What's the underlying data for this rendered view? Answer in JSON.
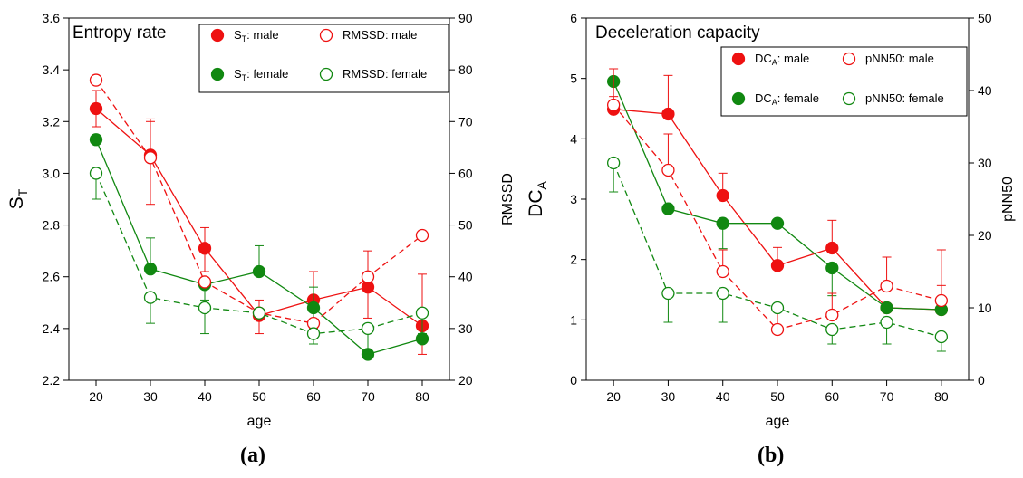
{
  "colors": {
    "male": "#ee1111",
    "female": "#118811",
    "axis": "#000000"
  },
  "chart_data": [
    {
      "type": "line",
      "title": "Entropy rate",
      "panel_label_pre": "(",
      "panel_label_letter": "a",
      "panel_label_post": ")",
      "xlabel": "age",
      "ylabel_main": "S",
      "ylabel_sub": "T",
      "y2label": "RMSSD",
      "x": [
        20,
        30,
        40,
        50,
        60,
        70,
        80
      ],
      "xlim": [
        15,
        85
      ],
      "ylim": [
        2.2,
        3.6
      ],
      "y2lim": [
        20,
        90
      ],
      "yticks": [
        "2.2",
        "2.4",
        "2.6",
        "2.8",
        "3.0",
        "3.2",
        "3.4",
        "3.6"
      ],
      "y2ticks": [
        "20",
        "30",
        "40",
        "50",
        "60",
        "70",
        "80",
        "90"
      ],
      "xticks": [
        "20",
        "30",
        "40",
        "50",
        "60",
        "70",
        "80"
      ],
      "series": [
        {
          "legend_pre": "S",
          "legend_sub": "T",
          "legend_post": ": male",
          "axis": "left",
          "color": "#ee1111",
          "marker": "filled",
          "dash": false,
          "values": [
            3.25,
            3.07,
            2.71,
            2.45,
            2.51,
            2.56,
            2.41
          ],
          "err_hi": [
            3.32,
            3.21,
            2.79,
            2.51,
            2.62,
            2.7,
            2.61
          ],
          "err_lo": [
            3.18,
            2.88,
            2.62,
            2.38,
            2.4,
            2.44,
            2.3
          ]
        },
        {
          "legend_pre": "S",
          "legend_sub": "T",
          "legend_post": ": female",
          "axis": "left",
          "color": "#118811",
          "marker": "filled",
          "dash": false,
          "values": [
            3.13,
            2.63,
            2.57,
            2.62,
            2.48,
            2.3,
            2.36
          ],
          "err_hi": [
            3.13,
            2.75,
            2.57,
            2.72,
            2.56,
            2.3,
            2.36
          ],
          "err_lo": [
            3.13,
            2.63,
            2.51,
            2.62,
            2.36,
            2.3,
            2.36
          ]
        },
        {
          "legend_pre": "RMSSD: male",
          "legend_sub": "",
          "legend_post": "",
          "axis": "right",
          "color": "#ee1111",
          "marker": "open",
          "dash": true,
          "values": [
            78,
            63,
            39,
            33,
            31,
            40,
            48
          ],
          "err_hi": [
            78,
            70,
            39,
            33,
            31,
            40,
            48
          ],
          "err_lo": [
            78,
            63,
            39,
            33,
            31,
            40,
            48
          ]
        },
        {
          "legend_pre": "RMSSD: female",
          "legend_sub": "",
          "legend_post": "",
          "axis": "right",
          "color": "#118811",
          "marker": "open",
          "dash": true,
          "values": [
            60,
            36,
            34,
            33,
            29,
            30,
            33
          ],
          "err_hi": [
            60,
            36,
            34,
            33,
            29,
            30,
            33
          ],
          "err_lo": [
            55,
            31,
            29,
            33,
            27,
            25,
            29
          ]
        }
      ]
    },
    {
      "type": "line",
      "title": "Deceleration capacity",
      "panel_label_pre": "(",
      "panel_label_letter": "b",
      "panel_label_post": ")",
      "xlabel": "age",
      "ylabel_main": "DC",
      "ylabel_sub": "A",
      "y2label": "pNN50",
      "x": [
        20,
        30,
        40,
        50,
        60,
        70,
        80
      ],
      "xlim": [
        15,
        85
      ],
      "ylim": [
        0,
        6
      ],
      "y2lim": [
        0,
        50
      ],
      "yticks": [
        "0",
        "1",
        "2",
        "3",
        "4",
        "5",
        "6"
      ],
      "y2ticks": [
        "0",
        "10",
        "20",
        "30",
        "40",
        "50"
      ],
      "xticks": [
        "20",
        "30",
        "40",
        "50",
        "60",
        "70",
        "80"
      ],
      "series": [
        {
          "legend_pre": "DC",
          "legend_sub": "A",
          "legend_post": ": male",
          "axis": "left",
          "color": "#ee1111",
          "marker": "filled",
          "dash": false,
          "values": [
            4.49,
            4.41,
            3.06,
            1.9,
            2.19,
            1.2,
            1.17
          ],
          "err_hi": [
            4.7,
            5.05,
            3.43,
            2.2,
            2.65,
            1.2,
            1.57
          ],
          "err_lo": [
            4.49,
            4.41,
            3.06,
            1.9,
            2.19,
            1.2,
            1.17
          ]
        },
        {
          "legend_pre": "DC",
          "legend_sub": "A",
          "legend_post": ": female",
          "axis": "left",
          "color": "#118811",
          "marker": "filled",
          "dash": false,
          "values": [
            4.95,
            2.84,
            2.6,
            2.6,
            1.86,
            1.2,
            1.17
          ],
          "err_hi": [
            4.95,
            2.84,
            2.6,
            2.6,
            1.86,
            1.2,
            1.17
          ],
          "err_lo": [
            4.95,
            2.84,
            2.18,
            2.6,
            1.4,
            1.2,
            1.17
          ]
        },
        {
          "legend_pre": "pNN50: male",
          "legend_sub": "",
          "legend_post": "",
          "axis": "right",
          "color": "#ee1111",
          "marker": "open",
          "dash": true,
          "values": [
            38,
            29,
            15,
            7,
            9,
            13,
            11
          ],
          "err_hi": [
            43,
            34,
            18,
            10,
            12,
            17,
            18
          ],
          "err_lo": [
            38,
            29,
            15,
            7,
            9,
            13,
            11
          ]
        },
        {
          "legend_pre": "pNN50: female",
          "legend_sub": "",
          "legend_post": "",
          "axis": "right",
          "color": "#118811",
          "marker": "open",
          "dash": true,
          "values": [
            30,
            12,
            12,
            10,
            7,
            8,
            6
          ],
          "err_hi": [
            30,
            12,
            12,
            10,
            7,
            8,
            6
          ],
          "err_lo": [
            26,
            8,
            8,
            10,
            5,
            5,
            4
          ]
        }
      ]
    }
  ]
}
